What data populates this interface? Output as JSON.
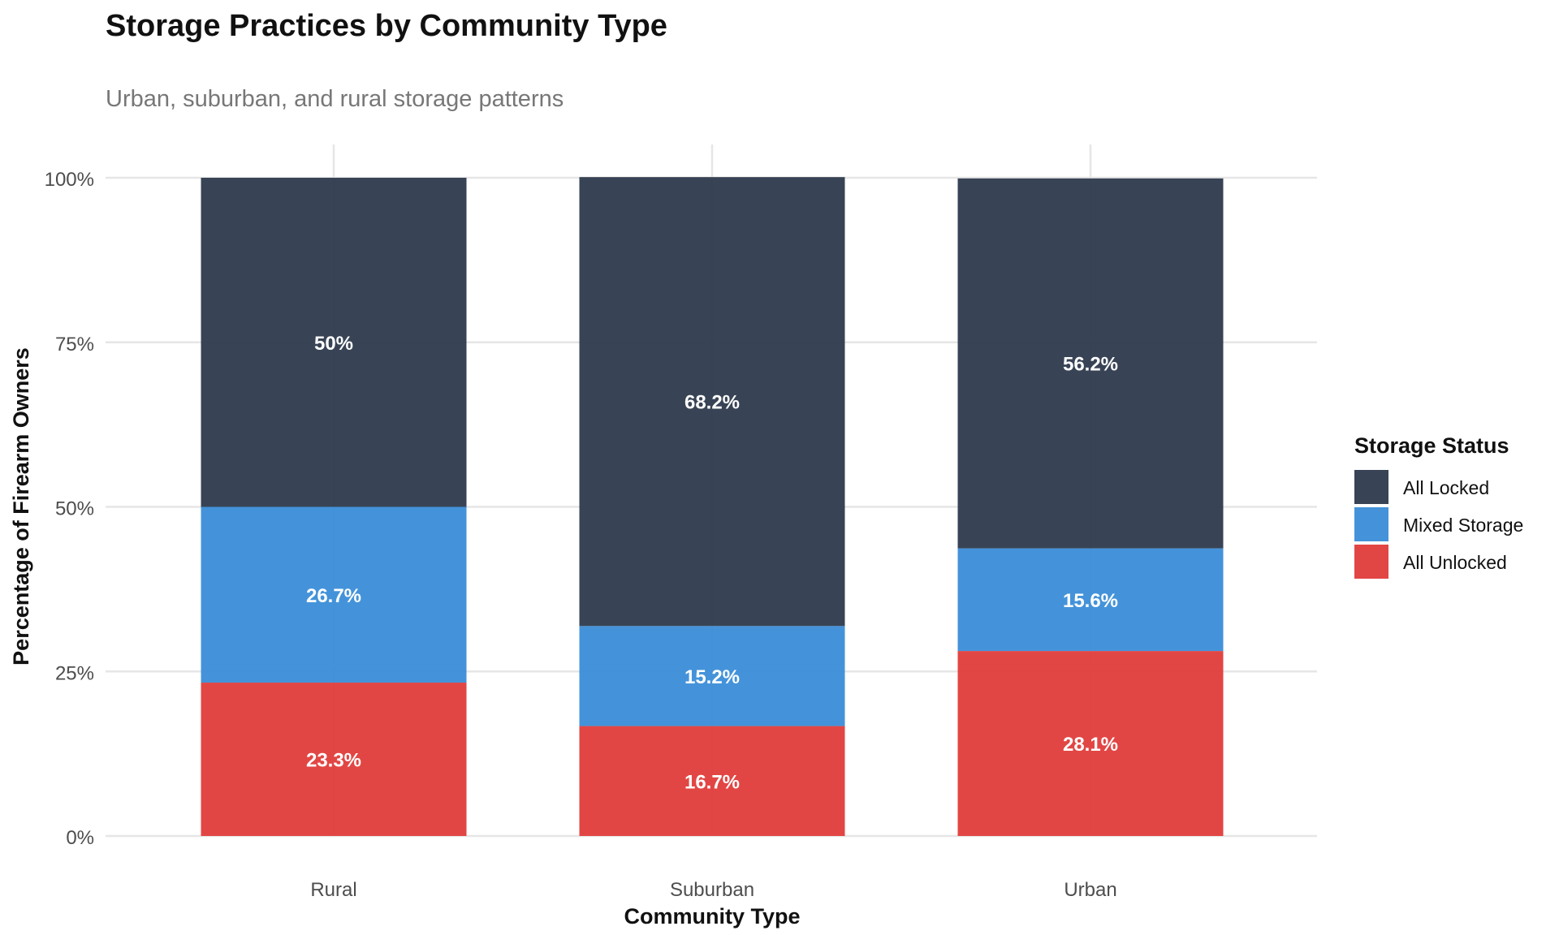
{
  "chart_data": {
    "type": "bar",
    "stacked": true,
    "title": "Storage Practices by Community Type",
    "subtitle": "Urban, suburban, and rural storage patterns",
    "xlabel": "Community Type",
    "ylabel": "Percentage of Firearm Owners",
    "categories": [
      "Rural",
      "Suburban",
      "Urban"
    ],
    "ylim": [
      0,
      100
    ],
    "yticks": [
      0,
      25,
      50,
      75,
      100
    ],
    "ytick_labels": [
      "0%",
      "25%",
      "50%",
      "75%",
      "100%"
    ],
    "grid": true,
    "legend": {
      "title": "Storage Status",
      "position": "right"
    },
    "series": [
      {
        "name": "All Unlocked",
        "color": "#E03C3A",
        "values": [
          23.3,
          16.7,
          28.1
        ],
        "labels": [
          "23.3%",
          "16.7%",
          "28.1%"
        ]
      },
      {
        "name": "Mixed Storage",
        "color": "#3A8DD8",
        "values": [
          26.7,
          15.2,
          15.6
        ],
        "labels": [
          "26.7%",
          "15.2%",
          "15.6%"
        ]
      },
      {
        "name": "All Locked",
        "color": "#2D3A4C",
        "values": [
          50,
          68.2,
          56.2
        ],
        "labels": [
          "50%",
          "68.2%",
          "56.2%"
        ]
      }
    ],
    "legend_order": [
      "All Locked",
      "Mixed Storage",
      "All Unlocked"
    ]
  }
}
